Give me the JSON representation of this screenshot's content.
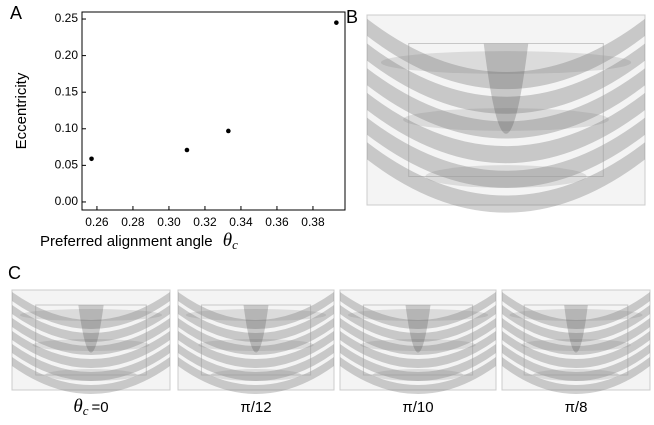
{
  "panels": {
    "a": "A",
    "b": "B",
    "c": "C"
  },
  "chart_data": {
    "type": "scatter",
    "xlabel": "Preferred alignment angle",
    "xlabel_symbol": "θ",
    "xlabel_subscript": "c",
    "ylabel": "Eccentricity",
    "x": [
      0.257,
      0.31,
      0.333,
      0.393
    ],
    "values": [
      0.059,
      0.071,
      0.097,
      0.245
    ],
    "color": "#000000",
    "xlim": [
      0.2517,
      0.3978
    ],
    "xticks": [
      0.26,
      0.28,
      {
        "value": 0.3,
        "label": "0.30"
      },
      0.32,
      0.34,
      0.36,
      0.38
    ],
    "ylim": [
      -0.011,
      0.2596
    ],
    "yticks": [
      {
        "value": 0,
        "label": "0.00"
      },
      0.05,
      {
        "value": 0.1,
        "label": "0.10"
      },
      0.15,
      {
        "value": 0.2,
        "label": "0.20"
      },
      0.25
    ],
    "grid": false
  },
  "renderings": {
    "captions": [
      {
        "symbol": "θ",
        "subscript": "c",
        "text": "=0"
      },
      "π/12",
      "π/10",
      "π/8"
    ]
  }
}
